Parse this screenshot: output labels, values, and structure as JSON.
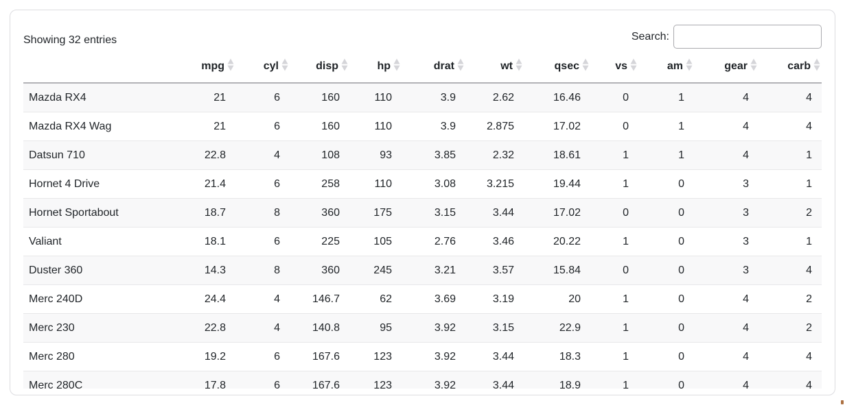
{
  "info_text": "Showing 32 entries",
  "search": {
    "label": "Search:",
    "value": "",
    "placeholder": ""
  },
  "table": {
    "columns": [
      {
        "key": "name",
        "label": "",
        "sortable": false,
        "align": "left"
      },
      {
        "key": "mpg",
        "label": "mpg",
        "sortable": true,
        "align": "right"
      },
      {
        "key": "cyl",
        "label": "cyl",
        "sortable": true,
        "align": "right"
      },
      {
        "key": "disp",
        "label": "disp",
        "sortable": true,
        "align": "right"
      },
      {
        "key": "hp",
        "label": "hp",
        "sortable": true,
        "align": "right"
      },
      {
        "key": "drat",
        "label": "drat",
        "sortable": true,
        "align": "right"
      },
      {
        "key": "wt",
        "label": "wt",
        "sortable": true,
        "align": "right"
      },
      {
        "key": "qsec",
        "label": "qsec",
        "sortable": true,
        "align": "right"
      },
      {
        "key": "vs",
        "label": "vs",
        "sortable": true,
        "align": "right"
      },
      {
        "key": "am",
        "label": "am",
        "sortable": true,
        "align": "right"
      },
      {
        "key": "gear",
        "label": "gear",
        "sortable": true,
        "align": "right"
      },
      {
        "key": "carb",
        "label": "carb",
        "sortable": true,
        "align": "right"
      }
    ],
    "rows": [
      [
        "Mazda RX4",
        "21",
        "6",
        "160",
        "110",
        "3.9",
        "2.62",
        "16.46",
        "0",
        "1",
        "4",
        "4"
      ],
      [
        "Mazda RX4 Wag",
        "21",
        "6",
        "160",
        "110",
        "3.9",
        "2.875",
        "17.02",
        "0",
        "1",
        "4",
        "4"
      ],
      [
        "Datsun 710",
        "22.8",
        "4",
        "108",
        "93",
        "3.85",
        "2.32",
        "18.61",
        "1",
        "1",
        "4",
        "1"
      ],
      [
        "Hornet 4 Drive",
        "21.4",
        "6",
        "258",
        "110",
        "3.08",
        "3.215",
        "19.44",
        "1",
        "0",
        "3",
        "1"
      ],
      [
        "Hornet Sportabout",
        "18.7",
        "8",
        "360",
        "175",
        "3.15",
        "3.44",
        "17.02",
        "0",
        "0",
        "3",
        "2"
      ],
      [
        "Valiant",
        "18.1",
        "6",
        "225",
        "105",
        "2.76",
        "3.46",
        "20.22",
        "1",
        "0",
        "3",
        "1"
      ],
      [
        "Duster 360",
        "14.3",
        "8",
        "360",
        "245",
        "3.21",
        "3.57",
        "15.84",
        "0",
        "0",
        "3",
        "4"
      ],
      [
        "Merc 240D",
        "24.4",
        "4",
        "146.7",
        "62",
        "3.69",
        "3.19",
        "20",
        "1",
        "0",
        "4",
        "2"
      ],
      [
        "Merc 230",
        "22.8",
        "4",
        "140.8",
        "95",
        "3.92",
        "3.15",
        "22.9",
        "1",
        "0",
        "4",
        "2"
      ],
      [
        "Merc 280",
        "19.2",
        "6",
        "167.6",
        "123",
        "3.92",
        "3.44",
        "18.3",
        "1",
        "0",
        "4",
        "4"
      ],
      [
        "Merc 280C",
        "17.8",
        "6",
        "167.6",
        "123",
        "3.92",
        "3.44",
        "18.9",
        "1",
        "0",
        "4",
        "4"
      ]
    ]
  },
  "colors": {
    "text": "#212529",
    "header_text": "#1f2327",
    "stripe": "#f8f8f9",
    "row_border": "#e7e7e9",
    "header_border": "#b2b2b6",
    "card_border": "#dcdcdf",
    "input_border": "#a9a9ad",
    "sort_icon": "#d5d5d9",
    "artifact": "#a4622d"
  }
}
